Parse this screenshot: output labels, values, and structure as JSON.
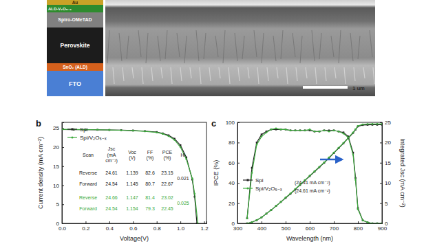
{
  "schematic": {
    "layers": [
      {
        "label": "Au",
        "color": "#c9a227"
      },
      {
        "label": "ALD-V₂O₅₋ₓ",
        "color": "#2e8b2e"
      },
      {
        "label": "Spiro-OMeTAD",
        "color": "#808080"
      },
      {
        "label": "Perovskite",
        "color": "#1c1c1c"
      },
      {
        "label": "SnO₂ (ALD)",
        "color": "#d4601c"
      },
      {
        "label": "FTO",
        "color": "#4a7fd4"
      }
    ]
  },
  "micrograph": {
    "scale_bar": "1 um"
  },
  "chart_data": [
    {
      "type": "line",
      "title": "b",
      "x_label": "Voltage(V)",
      "y_label": "Current density (mA cm⁻²)",
      "xlim": [
        0,
        1.22
      ],
      "ylim": [
        0,
        26.5
      ],
      "xticks": [
        {
          "value": 0,
          "label": "0.0"
        },
        {
          "value": 0.2,
          "label": "0.2"
        },
        {
          "value": 0.4,
          "label": "0.4"
        },
        {
          "value": 0.6,
          "label": "0.6"
        },
        {
          "value": 0.8,
          "label": "0.8"
        },
        {
          "value": 1,
          "label": "1.0"
        },
        {
          "value": 1.2,
          "label": "1.2"
        }
      ],
      "yticks": [
        0,
        5,
        10,
        15,
        20,
        25
      ],
      "legend": "top-left",
      "series": [
        {
          "name": "Spi",
          "color": "#222222",
          "marker": "square",
          "x": [
            0,
            0.1,
            0.2,
            0.3,
            0.4,
            0.5,
            0.6,
            0.7,
            0.8,
            0.85,
            0.9,
            0.95,
            1.0,
            1.05,
            1.1,
            1.12,
            1.139
          ],
          "values": [
            24.61,
            24.6,
            24.58,
            24.55,
            24.5,
            24.45,
            24.35,
            24.2,
            23.95,
            23.6,
            23.1,
            22.2,
            20.5,
            17.3,
            11.5,
            7.0,
            0
          ]
        },
        {
          "name": "Spi/V₂O₅₋ₓ",
          "color": "#3daa3d",
          "marker": "circle",
          "x": [
            0,
            0.1,
            0.2,
            0.3,
            0.4,
            0.5,
            0.6,
            0.7,
            0.8,
            0.85,
            0.9,
            0.95,
            1.0,
            1.05,
            1.1,
            1.12,
            1.147
          ],
          "values": [
            24.66,
            24.64,
            24.6,
            24.56,
            24.5,
            24.43,
            24.32,
            24.15,
            23.85,
            23.5,
            22.9,
            21.9,
            20.0,
            16.8,
            11.8,
            7.8,
            0
          ]
        }
      ],
      "table": {
        "header": [
          [
            "Scan"
          ],
          [
            "Jsc",
            "(mA",
            "cm⁻²)"
          ],
          [
            "Voc",
            "(V)"
          ],
          [
            "FF",
            "(%)"
          ],
          [
            "PCE",
            "(%)"
          ],
          [
            "HI"
          ]
        ],
        "groups": [
          {
            "color": "#222222",
            "rows": [
              [
                "Reverse",
                24.61,
                1.139,
                82.6,
                23.15
              ],
              [
                "Forward",
                24.54,
                1.145,
                80.7,
                22.67
              ]
            ],
            "hi": 0.021
          },
          {
            "color": "#3daa3d",
            "rows": [
              [
                "Reverse",
                24.66,
                1.147,
                81.4,
                23.02
              ],
              [
                "Forward",
                24.54,
                1.154,
                79.3,
                22.45
              ]
            ],
            "hi": 0.025
          }
        ]
      }
    },
    {
      "type": "line",
      "title": "c",
      "x_label": "Wavelength (nm)",
      "y_label": "IPCE (%)",
      "y2_label": "Integrated Jsc (mA cm⁻²)",
      "xlim": [
        300,
        900
      ],
      "ylim": [
        0,
        100
      ],
      "y2lim": [
        0,
        25
      ],
      "xticks": [
        300,
        400,
        500,
        600,
        700,
        800,
        900
      ],
      "yticks": [
        0,
        20,
        40,
        60,
        80,
        100
      ],
      "y2ticks": [
        0,
        5,
        10,
        15,
        20,
        25
      ],
      "legend": "bottom-left",
      "x": [
        340,
        360,
        380,
        400,
        420,
        440,
        460,
        480,
        500,
        520,
        540,
        560,
        580,
        600,
        620,
        640,
        660,
        680,
        700,
        720,
        740,
        760,
        780,
        790,
        800,
        820,
        840,
        860,
        880,
        900
      ],
      "series": [
        {
          "name": "Spi",
          "color": "#222222",
          "marker": "square",
          "values": [
            5,
            55,
            80,
            88,
            91,
            93,
            93,
            93,
            93,
            92,
            92,
            92,
            92,
            92,
            91,
            91,
            92,
            92,
            92,
            91,
            90,
            86,
            70,
            45,
            15,
            3,
            1,
            0,
            0,
            0
          ]
        },
        {
          "name": "Spi/V₂O₅₋ₓ",
          "color": "#3daa3d",
          "marker": "circle",
          "values": [
            5,
            50,
            78,
            86,
            90,
            93,
            94,
            93,
            93,
            92,
            92,
            92,
            92,
            93,
            91,
            91,
            92,
            91,
            92,
            91,
            89,
            85,
            68,
            43,
            14,
            3,
            1,
            0,
            0,
            0
          ]
        },
        {
          "color": "#222222",
          "marker": "square",
          "axis": "y2",
          "values": [
            0,
            0.3,
            0.8,
            1.5,
            2.4,
            3.3,
            4.3,
            5.3,
            6.3,
            7.3,
            8.4,
            9.5,
            10.6,
            11.7,
            12.8,
            13.9,
            15.0,
            16.2,
            17.4,
            18.6,
            19.8,
            21.1,
            22.4,
            23.2,
            24.0,
            24.35,
            24.4,
            24.41,
            24.41,
            24.41
          ]
        },
        {
          "color": "#3daa3d",
          "marker": "circle",
          "axis": "y2",
          "values": [
            0,
            0.3,
            0.8,
            1.5,
            2.4,
            3.3,
            4.3,
            5.3,
            6.4,
            7.4,
            8.5,
            9.6,
            10.7,
            11.8,
            12.9,
            14.0,
            15.1,
            16.3,
            17.5,
            18.7,
            19.9,
            21.2,
            22.5,
            23.3,
            24.1,
            24.5,
            24.58,
            24.6,
            24.61,
            24.61
          ]
        }
      ],
      "annotations": [
        "(24.41 mA cm⁻²)",
        "(24.61 mA cm⁻²)"
      ]
    }
  ]
}
